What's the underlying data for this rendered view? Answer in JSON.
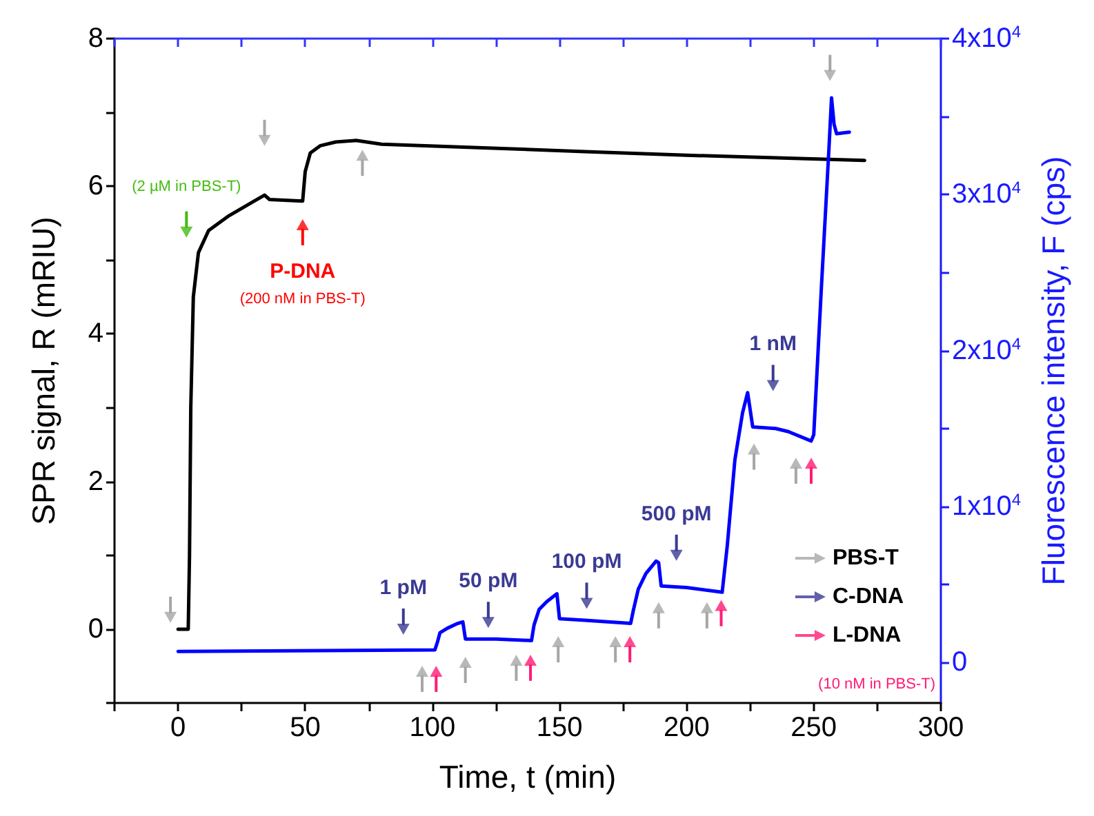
{
  "chart_data": {
    "type": "line",
    "xlabel": "Time, t (min)",
    "ylabel": "SPR signal, R (mRIU)",
    "y2label": "Fluorescence intensity, F (cps)",
    "xlim": [
      -25,
      300
    ],
    "xticks": [
      {
        "value": -25,
        "label": null
      },
      0,
      {
        "value": 25,
        "label": null
      },
      50,
      {
        "value": 75,
        "label": null
      },
      100,
      {
        "value": 125,
        "label": null
      },
      150,
      {
        "value": 175,
        "label": null
      },
      200,
      {
        "value": 225,
        "label": null
      },
      250,
      {
        "value": 275,
        "label": null
      },
      300
    ],
    "ylim": [
      -1,
      8
    ],
    "yticks": [
      {
        "value": -1,
        "label": null
      },
      0,
      {
        "value": 1,
        "label": null
      },
      2,
      {
        "value": 3,
        "label": null
      },
      4,
      {
        "value": 5,
        "label": null
      },
      6,
      {
        "value": 7,
        "label": null
      },
      8
    ],
    "y2lim": [
      -2600,
      40000
    ],
    "y2ticks": [
      0,
      {
        "value": 5000,
        "label": null
      },
      {
        "value": 10000,
        "label": "1x10$^{4}$"
      },
      {
        "value": 15000,
        "label": null
      },
      {
        "value": 20000,
        "label": "2x10$^{4}$"
      },
      {
        "value": 25000,
        "label": null
      },
      {
        "value": 30000,
        "label": "3x10$^{4}$"
      },
      {
        "value": 35000,
        "label": null
      },
      {
        "value": 40000,
        "label": "4x10$^{4}$"
      }
    ],
    "grid": false,
    "legend": "bottom right",
    "series": [
      {
        "type": "line",
        "color": "#000000",
        "x": [
          0,
          4,
          4.5,
          5,
          6,
          8,
          12,
          20,
          30,
          34,
          36,
          49,
          50,
          52,
          56,
          62,
          70,
          80,
          120,
          160,
          200,
          240,
          270
        ],
        "values": [
          0,
          0,
          1,
          3,
          4.5,
          5.1,
          5.4,
          5.6,
          5.8,
          5.88,
          5.82,
          5.8,
          6.2,
          6.45,
          6.55,
          6.6,
          6.62,
          6.57,
          6.52,
          6.47,
          6.42,
          6.38,
          6.35
        ]
      },
      {
        "type": "line",
        "color": "#0000ff",
        "axis": "y2",
        "x": [
          0,
          101,
          102,
          103,
          106,
          110,
          112,
          113,
          125,
          139,
          140,
          142,
          145,
          149,
          150,
          160,
          178,
          179,
          181,
          184,
          188,
          189,
          190,
          200,
          214,
          216,
          219,
          222,
          224,
          226,
          235,
          240,
          249,
          250,
          253,
          256,
          257,
          258,
          259,
          264
        ],
        "values": [
          700,
          800,
          1300,
          1900,
          2200,
          2500,
          2600,
          1500,
          1500,
          1400,
          2400,
          3400,
          3900,
          4400,
          2800,
          2700,
          2500,
          3300,
          4700,
          5700,
          6500,
          6400,
          4900,
          4800,
          4500,
          7500,
          13000,
          16000,
          17300,
          15100,
          15000,
          14800,
          14200,
          14600,
          24000,
          33000,
          36200,
          34500,
          33900,
          34000
        ]
      },
      {
        "type": "scatter",
        "name": "PBS-T",
        "color": "#a6a6a6",
        "marker": "triangle",
        "x": [
          72.5,
          96,
          113,
          133,
          149.5,
          172,
          189,
          208,
          226.5,
          243
        ],
        "values": [
          6.42,
          -0.57,
          -0.45,
          -0.42,
          -0.17,
          -0.17,
          0.29,
          0.29,
          2.44,
          2.25
        ]
      },
      {
        "type": "scatter",
        "color": "#a6a6a6",
        "marker": "triangle",
        "x": [
          -3,
          34,
          256.4
        ],
        "values": [
          0.16,
          6.62,
          7.5
        ]
      },
      {
        "type": "scatter",
        "name": "C-DNA",
        "color": "#3a3a94",
        "marker": "triangle",
        "x": [
          88.6,
          122,
          160.7,
          196,
          234
        ],
        "values": [
          0,
          0.09,
          0.35,
          1,
          3.3
        ]
      },
      {
        "type": "scatter",
        "name": "L-DNA",
        "color": "#ff1a75",
        "marker": "triangle",
        "x": [
          101.5,
          138.6,
          177.7,
          213.6,
          249
        ],
        "values": [
          -0.57,
          -0.42,
          -0.17,
          0.32,
          2.25
        ]
      },
      {
        "type": "scatter",
        "color": "#44bb11",
        "marker": "triangle",
        "x": [
          3.3
        ],
        "values": [
          5.38
        ]
      },
      {
        "type": "scatter",
        "color": "#ff0000",
        "marker": "triangle",
        "x": [
          49
        ],
        "values": [
          5.48
        ]
      }
    ],
    "annotations": [
      "(2 µM in PBS-T)",
      "P-DNA",
      "(200 nM in PBS-T)",
      "1 pM",
      "50 pM",
      "100 pM",
      "500 pM",
      "1 nM",
      "(10 nM in PBS-T)"
    ]
  }
}
